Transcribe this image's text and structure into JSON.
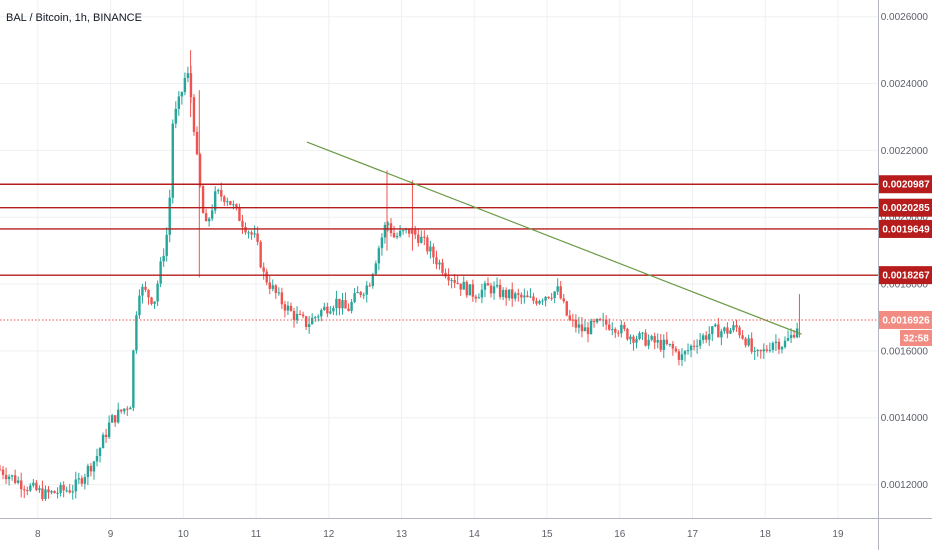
{
  "header": {
    "title": "BAL / Bitcoin, 1h, BINANCE"
  },
  "colors": {
    "up": "#26a69a",
    "down": "#ef5350",
    "level": "#b71c1c",
    "trendline": "#6a9a45",
    "price_line": "#ef5350",
    "grid": "#eef0f3",
    "axis": "#5d606b"
  },
  "chart_data": {
    "type": "candlestick",
    "symbol": "BAL / Bitcoin",
    "interval": "1h",
    "exchange": "BINANCE",
    "xlim": [
      7.48,
      19.55
    ],
    "ylim": [
      0.0011,
      0.00265
    ],
    "x_ticks": [
      8,
      9,
      10,
      11,
      12,
      13,
      14,
      15,
      16,
      17,
      18,
      19
    ],
    "x_tick_labels": [
      "8",
      "9",
      "10",
      "11",
      "12",
      "13",
      "14",
      "15",
      "16",
      "17",
      "18",
      "19"
    ],
    "y_ticks": [
      0.0012,
      0.0014,
      0.0016,
      0.0018,
      0.002,
      0.0022,
      0.0024,
      0.0026
    ],
    "y_tick_labels": [
      "0.0012000",
      "0.0014000",
      "0.0016000",
      "0.0018000",
      "0.0020000",
      "0.0022000",
      "0.0024000",
      "0.0026000"
    ],
    "grid": true,
    "close_path": [
      [
        7.48,
        0.001245
      ],
      [
        7.8,
        0.0012
      ],
      [
        8.1,
        0.00117
      ],
      [
        8.5,
        0.00119
      ],
      [
        8.8,
        0.00128
      ],
      [
        9.0,
        0.00139
      ],
      [
        9.3,
        0.00145
      ],
      [
        9.32,
        0.00167
      ],
      [
        9.4,
        0.00179
      ],
      [
        9.6,
        0.00175
      ],
      [
        9.8,
        0.00198
      ],
      [
        9.85,
        0.00228
      ],
      [
        9.95,
        0.00235
      ],
      [
        10.05,
        0.00244
      ],
      [
        10.12,
        0.00234
      ],
      [
        10.2,
        0.00214
      ],
      [
        10.3,
        0.00196
      ],
      [
        10.45,
        0.00207
      ],
      [
        10.6,
        0.00206
      ],
      [
        10.8,
        0.00199
      ],
      [
        11.0,
        0.00193
      ],
      [
        11.1,
        0.00183
      ],
      [
        11.3,
        0.00176
      ],
      [
        11.5,
        0.00171
      ],
      [
        11.7,
        0.00168
      ],
      [
        11.9,
        0.00172
      ],
      [
        12.1,
        0.00175
      ],
      [
        12.25,
        0.00172
      ],
      [
        12.4,
        0.00177
      ],
      [
        12.55,
        0.0018
      ],
      [
        12.7,
        0.00192
      ],
      [
        12.8,
        0.00199
      ],
      [
        12.9,
        0.00194
      ],
      [
        13.1,
        0.00196
      ],
      [
        13.25,
        0.00194
      ],
      [
        13.45,
        0.00188
      ],
      [
        13.6,
        0.00184
      ],
      [
        13.8,
        0.0018
      ],
      [
        14.0,
        0.00177
      ],
      [
        14.2,
        0.00179
      ],
      [
        14.4,
        0.00177
      ],
      [
        14.6,
        0.00176
      ],
      [
        14.8,
        0.00175
      ],
      [
        15.0,
        0.00177
      ],
      [
        15.15,
        0.00178
      ],
      [
        15.3,
        0.00169
      ],
      [
        15.5,
        0.00166
      ],
      [
        15.7,
        0.00168
      ],
      [
        15.9,
        0.00168
      ],
      [
        16.1,
        0.00165
      ],
      [
        16.4,
        0.00163
      ],
      [
        16.7,
        0.00161
      ],
      [
        16.85,
        0.00158
      ],
      [
        17.05,
        0.00163
      ],
      [
        17.3,
        0.00166
      ],
      [
        17.5,
        0.00166
      ],
      [
        17.6,
        0.00167
      ],
      [
        17.75,
        0.00163
      ],
      [
        17.85,
        0.00158
      ],
      [
        18.0,
        0.0016
      ],
      [
        18.1,
        0.00163
      ],
      [
        18.25,
        0.00162
      ],
      [
        18.35,
        0.00164
      ],
      [
        18.47,
        0.00169
      ]
    ],
    "wick_spikes": [
      {
        "x": 10.1,
        "high": 0.0025,
        "low": 0.0023
      },
      {
        "x": 10.22,
        "high": 0.00238,
        "low": 0.00182
      },
      {
        "x": 12.8,
        "high": 0.00214,
        "low": 0.0019
      },
      {
        "x": 13.15,
        "high": 0.00211,
        "low": 0.0019
      },
      {
        "x": 18.47,
        "high": 0.00177,
        "low": 0.00164
      }
    ],
    "horizontal_levels": [
      0.0020987,
      0.0020285,
      0.0019649,
      0.0018267
    ],
    "horizontal_level_labels": [
      "0.0020987",
      "0.0020285",
      "0.0019649",
      "0.0018267"
    ],
    "trendline": {
      "x1": 11.7,
      "y1": 0.002225,
      "x2": 18.5,
      "y2": 0.00165
    },
    "last_price": 0.0016926,
    "last_price_label": "0.0016926",
    "countdown": "32:58"
  }
}
